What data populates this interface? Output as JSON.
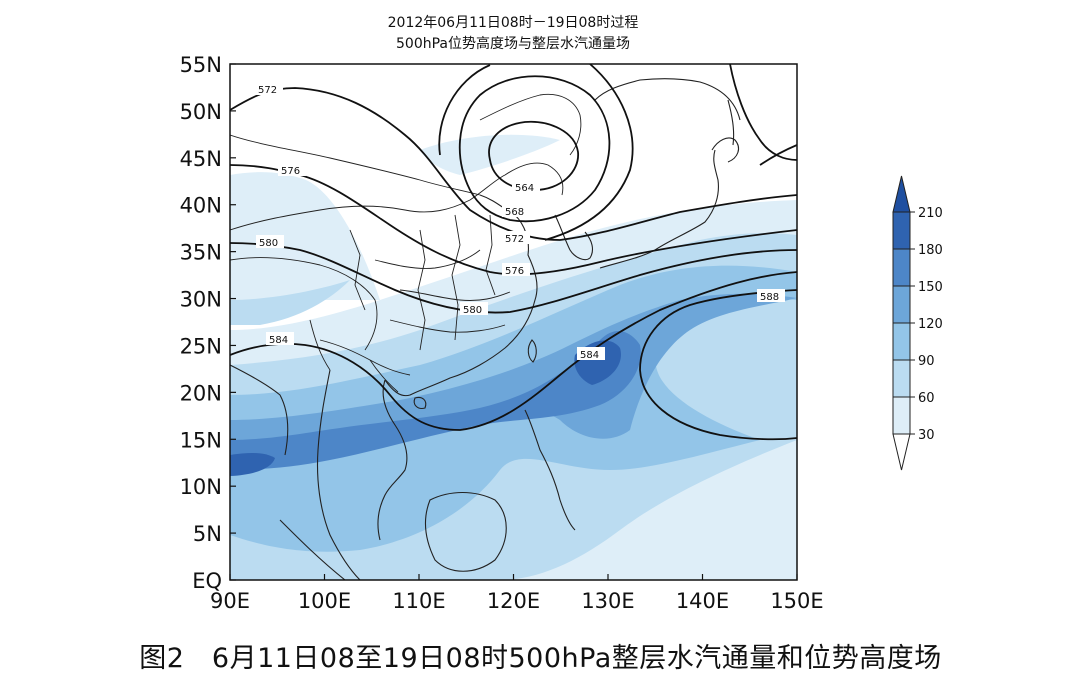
{
  "title_line1": "2012年06月11日08时－19日08时过程",
  "title_line2": "500hPa位势高度场与整层水汽通量场",
  "map": {
    "lon_range": [
      90,
      150
    ],
    "lat_range": [
      0,
      55
    ],
    "x_tick_labels": [
      "90E",
      "100E",
      "110E",
      "120E",
      "130E",
      "140E",
      "150E"
    ],
    "y_tick_labels": [
      "EQ",
      "5N",
      "10N",
      "15N",
      "20N",
      "25N",
      "30N",
      "35N",
      "40N",
      "45N",
      "50N",
      "55N"
    ],
    "contour_labels": [
      "572",
      "576",
      "580",
      "584",
      "564",
      "568",
      "572",
      "576",
      "580",
      "584",
      "588"
    ],
    "colorbar": {
      "labels": [
        "30",
        "60",
        "90",
        "120",
        "150",
        "180",
        "210"
      ],
      "colors": [
        "#ffffff",
        "#deeef8",
        "#bbdcf1",
        "#93c5e8",
        "#6da6d9",
        "#4d86c8",
        "#2f63b0",
        "#1f4fa0"
      ]
    }
  },
  "caption": "图2　6月11日08至19日08时500hPa整层水汽通量和位势高度场"
}
